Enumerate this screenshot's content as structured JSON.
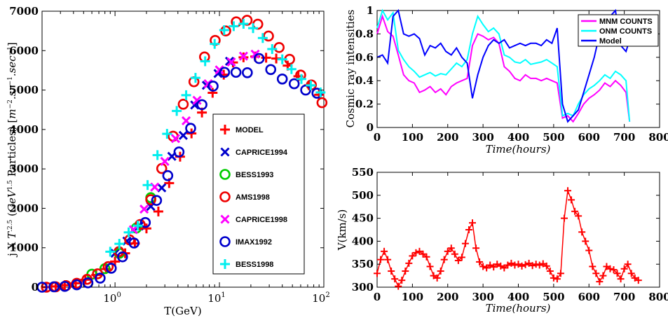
{
  "chart_data": [
    {
      "type": "scatter",
      "xscale": "log",
      "xlabel": "T(GeV)",
      "ylabel": "j X T^2.5 (GeV^1.5 Particles) [m^-2.sr^-1.sec^-1]",
      "xlim": [
        0.2,
        100
      ],
      "ylim": [
        0,
        7000
      ],
      "xticks": [
        "10^0",
        "10^1",
        "10^2"
      ],
      "yticks": [
        "0",
        "1000",
        "2000",
        "3000",
        "4000",
        "5000",
        "6000",
        "7000"
      ],
      "legend_position": "right-middle",
      "series": [
        {
          "name": "MODEL",
          "marker": "+",
          "color": "#ff0000",
          "x": [
            0.22,
            0.27,
            0.33,
            0.42,
            0.52,
            0.66,
            0.82,
            1.0,
            1.25,
            1.55,
            2.0,
            2.6,
            3.3,
            4.2,
            5.4,
            6.8,
            8.6,
            11,
            13.5,
            17,
            22,
            28,
            35,
            45,
            57,
            72,
            90
          ],
          "y": [
            0,
            20,
            50,
            100,
            190,
            310,
            460,
            650,
            860,
            1110,
            1490,
            1920,
            2640,
            3310,
            3900,
            4430,
            4930,
            5390,
            5700,
            5830,
            5850,
            5820,
            5800,
            5620,
            5350,
            5120,
            4880
          ]
        },
        {
          "name": "CAPRICE1994",
          "marker": "x",
          "color": "#0000cc",
          "x": [
            1.0,
            1.3,
            1.7,
            2.2,
            2.8,
            3.5,
            4.5,
            5.8,
            7.5,
            9.7,
            12.5
          ],
          "y": [
            860,
            1170,
            1550,
            2050,
            2520,
            3320,
            3850,
            4620,
            5120,
            5420,
            5730
          ]
        },
        {
          "name": "BESS1993",
          "marker": "o",
          "color": "#00cc00",
          "x": [
            0.6,
            0.8,
            1.1,
            1.6,
            2.2
          ],
          "y": [
            330,
            470,
            860,
            1500,
            2270
          ]
        },
        {
          "name": "AMS1998",
          "marker": "o",
          "color": "#ee0000",
          "x": [
            0.22,
            0.27,
            0.34,
            0.43,
            0.54,
            0.68,
            0.86,
            1.09,
            1.38,
            1.74,
            2.2,
            2.8,
            3.6,
            4.5,
            5.7,
            7.2,
            9.1,
            11.5,
            14.5,
            18.4,
            23.3,
            29.5,
            37.3,
            47,
            60,
            76,
            96
          ],
          "y": [
            0,
            10,
            40,
            100,
            200,
            340,
            520,
            900,
            1200,
            1590,
            2220,
            3010,
            3830,
            4640,
            5210,
            5840,
            6260,
            6500,
            6730,
            6770,
            6670,
            6370,
            6080,
            5780,
            5380,
            5130,
            4680
          ]
        },
        {
          "name": "CAPRICE1998",
          "marker": "x",
          "color": "#ff00ff",
          "x": [
            1.5,
            1.9,
            2.4,
            3.0,
            3.8,
            4.8,
            6.1,
            7.8,
            10,
            13,
            17,
            22
          ],
          "y": [
            1460,
            1980,
            2540,
            3190,
            3770,
            4220,
            4740,
            5160,
            5510,
            5710,
            5860,
            5910
          ]
        },
        {
          "name": "IMAX1992",
          "marker": "o",
          "color": "#0000cc",
          "x": [
            0.2,
            0.26,
            0.33,
            0.43,
            0.55,
            0.72,
            0.92,
            1.18,
            1.52,
            1.95,
            2.5,
            3.2,
            4.1,
            5.3,
            6.8,
            8.7,
            11.2,
            14.4,
            18.5,
            24,
            31,
            40,
            52,
            67,
            86
          ],
          "y": [
            0,
            10,
            20,
            60,
            110,
            230,
            480,
            770,
            1120,
            1640,
            2200,
            2830,
            3430,
            4030,
            4630,
            5100,
            5450,
            5450,
            5440,
            5800,
            5520,
            5280,
            5160,
            5000,
            4920
          ]
        },
        {
          "name": "BESS1998",
          "marker": "+",
          "color": "#00eeee",
          "x": [
            0.9,
            1.1,
            1.35,
            1.65,
            2.05,
            2.55,
            3.15,
            3.9,
            4.8,
            5.9,
            7.3,
            9.0,
            11.1,
            13.7,
            17,
            21,
            26,
            32,
            40,
            49,
            61,
            75,
            93
          ],
          "y": [
            900,
            1100,
            1390,
            1560,
            2590,
            3350,
            3890,
            4470,
            4870,
            5310,
            5730,
            6170,
            6520,
            6620,
            6680,
            6570,
            6320,
            6040,
            5780,
            5530,
            5280,
            5120,
            4940
          ]
        }
      ]
    },
    {
      "type": "line",
      "xlabel": "Time(hours)",
      "ylabel": "Cosmic ray intensities",
      "xlim": [
        0,
        800
      ],
      "ylim": [
        0,
        1
      ],
      "xticks": [
        "0",
        "100",
        "200",
        "300",
        "400",
        "500",
        "600",
        "700",
        "800"
      ],
      "yticks": [
        "0",
        "0.2",
        "0.4",
        "0.6",
        "0.8",
        "1"
      ],
      "legend_position": "top-right",
      "series": [
        {
          "name": "MNM COUNTS",
          "color": "#ff00ff",
          "x": [
            0,
            15,
            30,
            45,
            60,
            75,
            90,
            105,
            120,
            135,
            150,
            165,
            180,
            195,
            210,
            225,
            240,
            255,
            270,
            285,
            300,
            315,
            330,
            345,
            360,
            375,
            390,
            405,
            420,
            435,
            450,
            465,
            480,
            495,
            510,
            525,
            540,
            555,
            570,
            585,
            600,
            615,
            630,
            645,
            660,
            675,
            690,
            705,
            715
          ],
          "y": [
            0.8,
            0.95,
            0.82,
            0.78,
            0.62,
            0.45,
            0.4,
            0.38,
            0.3,
            0.32,
            0.35,
            0.3,
            0.33,
            0.28,
            0.35,
            0.38,
            0.4,
            0.42,
            0.7,
            0.8,
            0.78,
            0.75,
            0.77,
            0.72,
            0.52,
            0.48,
            0.42,
            0.4,
            0.45,
            0.42,
            0.42,
            0.4,
            0.42,
            0.4,
            0.38,
            0.08,
            0.1,
            0.05,
            0.12,
            0.2,
            0.25,
            0.28,
            0.32,
            0.38,
            0.35,
            0.4,
            0.36,
            0.3,
            0.05
          ]
        },
        {
          "name": "ONM COUNTS",
          "color": "#00ffff",
          "x": [
            0,
            15,
            30,
            45,
            60,
            75,
            90,
            105,
            120,
            135,
            150,
            165,
            180,
            195,
            210,
            225,
            240,
            255,
            270,
            285,
            300,
            315,
            330,
            345,
            360,
            375,
            390,
            405,
            420,
            435,
            450,
            465,
            480,
            495,
            510,
            525,
            540,
            555,
            570,
            585,
            600,
            615,
            630,
            645,
            660,
            675,
            690,
            705,
            715
          ],
          "y": [
            0.85,
            1.0,
            0.92,
            0.98,
            0.66,
            0.58,
            0.52,
            0.48,
            0.43,
            0.45,
            0.47,
            0.44,
            0.46,
            0.45,
            0.5,
            0.55,
            0.52,
            0.58,
            0.8,
            0.95,
            0.88,
            0.82,
            0.85,
            0.8,
            0.62,
            0.6,
            0.56,
            0.55,
            0.58,
            0.54,
            0.55,
            0.56,
            0.58,
            0.55,
            0.52,
            0.1,
            0.12,
            0.1,
            0.2,
            0.28,
            0.33,
            0.36,
            0.4,
            0.45,
            0.42,
            0.48,
            0.45,
            0.4,
            0.05
          ]
        },
        {
          "name": "Model",
          "color": "#0000ff",
          "x": [
            0,
            15,
            30,
            45,
            60,
            75,
            90,
            105,
            120,
            135,
            150,
            165,
            180,
            195,
            210,
            225,
            240,
            255,
            270,
            285,
            300,
            315,
            330,
            345,
            360,
            375,
            390,
            405,
            420,
            435,
            450,
            465,
            480,
            495,
            510,
            525,
            540,
            555,
            570,
            585,
            600,
            615,
            630,
            645,
            660,
            675,
            690,
            705,
            715
          ],
          "y": [
            0.6,
            0.62,
            0.55,
            0.95,
            1.0,
            0.8,
            0.78,
            0.8,
            0.76,
            0.62,
            0.7,
            0.68,
            0.72,
            0.65,
            0.62,
            0.68,
            0.6,
            0.55,
            0.25,
            0.45,
            0.6,
            0.7,
            0.75,
            0.72,
            0.75,
            0.68,
            0.7,
            0.72,
            0.7,
            0.72,
            0.72,
            0.7,
            0.75,
            0.72,
            0.85,
            0.2,
            0.05,
            0.1,
            0.15,
            0.3,
            0.45,
            0.6,
            0.8,
            0.9,
            0.95,
            1.0,
            0.7,
            0.65,
            0.75
          ]
        }
      ]
    },
    {
      "type": "line",
      "marker": "+",
      "xlabel": "Time(hours)",
      "ylabel": "V(km/s)",
      "xlim": [
        0,
        800
      ],
      "ylim": [
        300,
        550
      ],
      "xticks": [
        "0",
        "100",
        "200",
        "300",
        "400",
        "500",
        "600",
        "700",
        "800"
      ],
      "yticks": [
        "300",
        "350",
        "400",
        "450",
        "500",
        "550"
      ],
      "series": [
        {
          "color": "#ff0000",
          "x": [
            0,
            10,
            20,
            30,
            40,
            50,
            60,
            70,
            80,
            90,
            100,
            110,
            120,
            130,
            140,
            150,
            160,
            170,
            180,
            190,
            200,
            210,
            220,
            230,
            240,
            250,
            260,
            270,
            280,
            290,
            300,
            310,
            320,
            330,
            340,
            350,
            360,
            370,
            380,
            390,
            400,
            410,
            420,
            430,
            440,
            450,
            460,
            470,
            480,
            490,
            500,
            510,
            520,
            530,
            540,
            550,
            560,
            570,
            580,
            590,
            600,
            610,
            620,
            630,
            640,
            650,
            660,
            670,
            680,
            690,
            700,
            710,
            720,
            730,
            740
          ],
          "y": [
            330,
            360,
            378,
            360,
            335,
            318,
            302,
            315,
            335,
            352,
            368,
            375,
            378,
            372,
            366,
            345,
            325,
            320,
            335,
            360,
            378,
            385,
            372,
            358,
            365,
            395,
            425,
            440,
            385,
            355,
            345,
            342,
            348,
            344,
            350,
            346,
            342,
            348,
            352,
            348,
            350,
            346,
            349,
            352,
            347,
            350,
            348,
            351,
            346,
            335,
            320,
            318,
            330,
            450,
            510,
            490,
            465,
            455,
            420,
            400,
            380,
            345,
            330,
            312,
            325,
            345,
            340,
            338,
            330,
            318,
            340,
            350,
            330,
            320,
            315
          ]
        }
      ]
    }
  ]
}
